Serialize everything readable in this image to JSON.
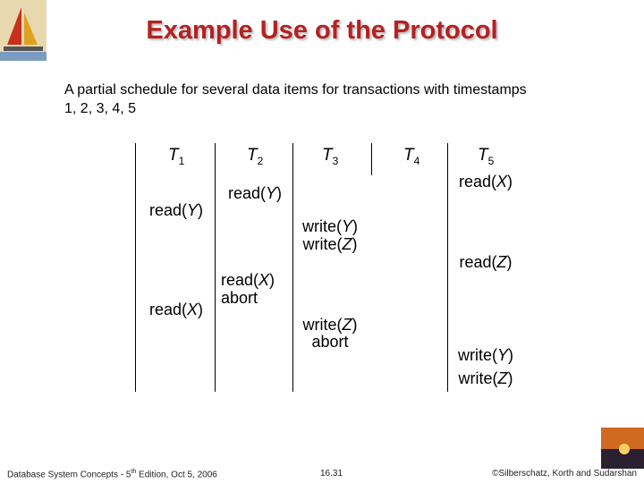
{
  "header": {
    "title": "Example Use of the Protocol"
  },
  "intro": "A partial schedule for several data items for transactions with timestamps 1, 2, 3, 4, 5",
  "schedule": {
    "columns": [
      {
        "name": "T",
        "sub": "1",
        "ops": [
          "read(Y)",
          "read(X)"
        ]
      },
      {
        "name": "T",
        "sub": "2",
        "ops": [
          "read(Y)",
          "read(X)",
          "abort"
        ]
      },
      {
        "name": "T",
        "sub": "3",
        "ops": [
          "write(Y)",
          "write(Z)",
          "write(Z)",
          "abort"
        ]
      },
      {
        "name": "T",
        "sub": "4",
        "ops": []
      },
      {
        "name": "T",
        "sub": "5",
        "ops": [
          "read(X)",
          "read(Z)",
          "write(Y)",
          "write(Z)"
        ]
      }
    ]
  },
  "footer": {
    "left": [
      "Database System Concepts - 5",
      "th",
      " Edition, Oct 5, 2006"
    ],
    "page": "16.31",
    "right": "©Silberschatz, Korth and Sudarshan"
  }
}
